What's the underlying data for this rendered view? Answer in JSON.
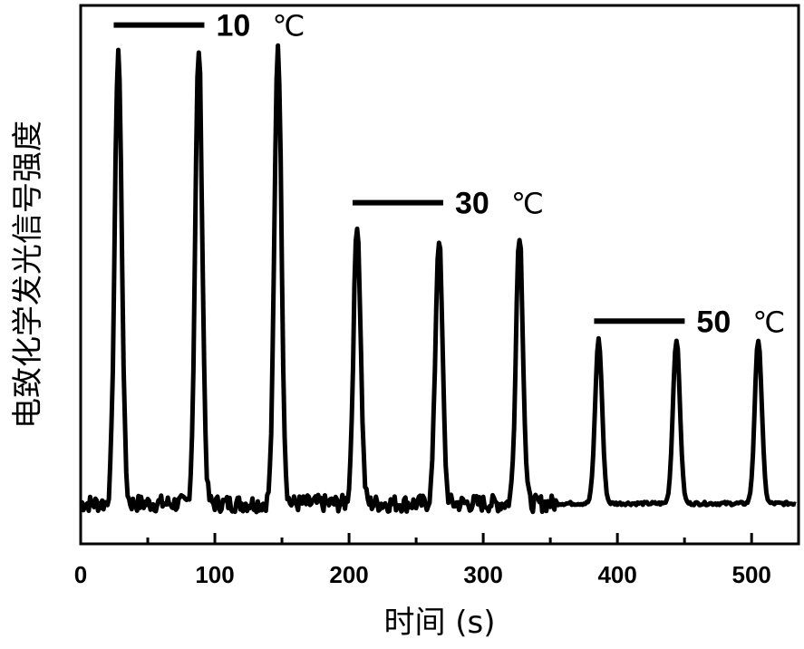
{
  "chart_data": {
    "type": "line",
    "title": "",
    "xlabel": "时间 (s)",
    "ylabel": "电致化学发光信号强度",
    "xlim": [
      0,
      535
    ],
    "ylim": [
      0,
      100
    ],
    "x_ticks": [
      0,
      100,
      200,
      300,
      400,
      500
    ],
    "x_tick_labels": [
      "0",
      "100",
      "200",
      "300",
      "400",
      "500"
    ],
    "grid": false,
    "legend": [
      {
        "label": "10",
        "unit": "℃"
      },
      {
        "label": "30",
        "unit": "℃"
      },
      {
        "label": "50",
        "unit": "℃"
      }
    ],
    "baseline": 7.5,
    "peaks": [
      {
        "x": 28,
        "y": 92,
        "group": 0
      },
      {
        "x": 88,
        "y": 92,
        "group": 0
      },
      {
        "x": 147,
        "y": 93,
        "group": 0
      },
      {
        "x": 206,
        "y": 60,
        "group": 1
      },
      {
        "x": 267,
        "y": 57,
        "group": 1
      },
      {
        "x": 327,
        "y": 58,
        "group": 1
      },
      {
        "x": 386,
        "y": 38,
        "group": 2
      },
      {
        "x": 444,
        "y": 38,
        "group": 2
      },
      {
        "x": 505,
        "y": 38,
        "group": 2
      }
    ],
    "color": "#000000"
  }
}
